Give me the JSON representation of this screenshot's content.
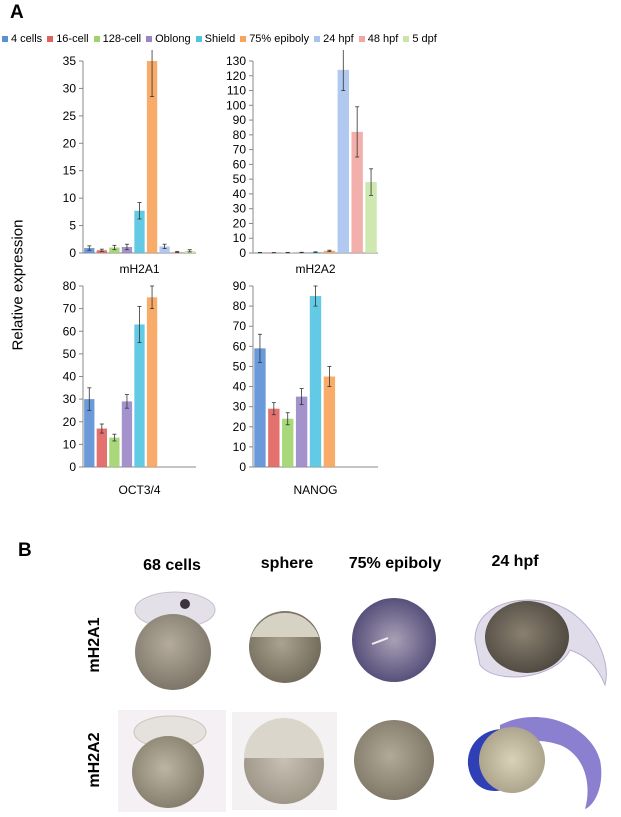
{
  "panel_a_label": "A",
  "panel_b_label": "B",
  "y_axis_label": "Relative expression",
  "legend": [
    {
      "label": "4 cells",
      "color": "#5b8fd6"
    },
    {
      "label": "16-cell",
      "color": "#e0625e"
    },
    {
      "label": "128-cell",
      "color": "#9fd46b"
    },
    {
      "label": "Oblong",
      "color": "#9a86c6"
    },
    {
      "label": "Shield",
      "color": "#52c4e3"
    },
    {
      "label": "75% epiboly",
      "color": "#f8a35a"
    },
    {
      "label": "24 hpf",
      "color": "#a9c3ee"
    },
    {
      "label": "48 hpf",
      "color": "#f2a6a2"
    },
    {
      "label": "5 dpf",
      "color": "#c9e6a6"
    }
  ],
  "chart_data": [
    {
      "type": "bar",
      "title": "mH2A1",
      "categories": [
        "4 cells",
        "16-cell",
        "128-cell",
        "Oblong",
        "Shield",
        "75% epiboly",
        "24 hpf",
        "48 hpf",
        "5 dpf"
      ],
      "values": [
        0.9,
        0.5,
        1.0,
        1.1,
        7.7,
        35,
        1.2,
        0.2,
        0.4
      ],
      "errors": [
        0.4,
        0.2,
        0.4,
        0.5,
        1.5,
        6.5,
        0.4,
        0.1,
        0.2
      ],
      "ylim": [
        0,
        35
      ],
      "yticks": [
        0,
        5,
        10,
        15,
        20,
        25,
        30,
        35
      ],
      "grid": false
    },
    {
      "type": "bar",
      "title": "mH2A2",
      "categories": [
        "4 cells",
        "16-cell",
        "128-cell",
        "Oblong",
        "Shield",
        "75% epiboly",
        "24 hpf",
        "48 hpf",
        "5 dpf"
      ],
      "values": [
        0.3,
        0.2,
        0.3,
        0.4,
        0.6,
        1.5,
        124,
        82,
        48
      ],
      "errors": [
        0.1,
        0.1,
        0.1,
        0.1,
        0.2,
        0.4,
        14,
        17,
        9
      ],
      "ylim": [
        0,
        130
      ],
      "yticks": [
        0,
        10,
        20,
        30,
        40,
        50,
        60,
        70,
        80,
        90,
        100,
        110,
        120,
        130
      ],
      "grid": false
    },
    {
      "type": "bar",
      "title": "OCT3/4",
      "categories": [
        "4 cells",
        "16-cell",
        "128-cell",
        "Oblong",
        "Shield",
        "75% epiboly",
        "24 hpf",
        "48 hpf",
        "5 dpf"
      ],
      "values": [
        30,
        17,
        13,
        29,
        63,
        75,
        0,
        0,
        0
      ],
      "errors": [
        5,
        2,
        1.5,
        3,
        8,
        5,
        0,
        0,
        0
      ],
      "ylim": [
        0,
        80
      ],
      "yticks": [
        0,
        10,
        20,
        30,
        40,
        50,
        60,
        70,
        80
      ],
      "grid": false
    },
    {
      "type": "bar",
      "title": "NANOG",
      "categories": [
        "4 cells",
        "16-cell",
        "128-cell",
        "Oblong",
        "Shield",
        "75% epiboly",
        "24 hpf",
        "48 hpf",
        "5 dpf"
      ],
      "values": [
        59,
        29,
        24,
        35,
        85,
        45,
        0,
        0,
        0
      ],
      "errors": [
        7,
        3,
        3,
        4,
        5,
        5,
        0,
        0,
        0
      ],
      "ylim": [
        0,
        90
      ],
      "yticks": [
        0,
        10,
        20,
        30,
        40,
        50,
        60,
        70,
        80,
        90
      ],
      "grid": false
    }
  ],
  "panel_b": {
    "columns": [
      "68 cells",
      "sphere",
      "75% epiboly",
      "24 hpf"
    ],
    "rows": [
      "mH2A1",
      "mH2A2"
    ]
  }
}
